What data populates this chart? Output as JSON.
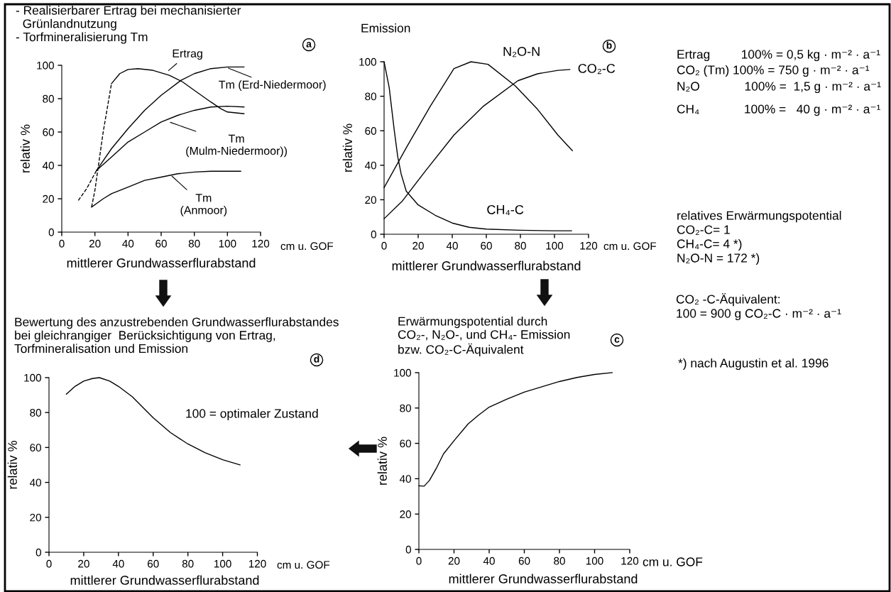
{
  "chart_data": [
    {
      "type": "line",
      "title": "- Realisierbarer Ertrag bei mechanisierter\n  Grünlandnutzung\n- Torfmineralisierung Tm",
      "xlabel": "mittlerer Grundwasserflurabstand",
      "ylabel": "relativ %",
      "xlim": [
        0,
        120
      ],
      "xticks": [
        0,
        20,
        40,
        60,
        80,
        100,
        120
      ],
      "ylim": [
        0,
        100
      ],
      "yticks": [
        0,
        20,
        40,
        60,
        80,
        100
      ],
      "series": [
        {
          "color": "#000000",
          "line_style": "dashed",
          "x": [
            18,
            20,
            25,
            30
          ],
          "values": [
            15,
            25,
            60,
            89
          ]
        },
        {
          "color": "#000000",
          "line_style": "solid",
          "x": [
            30,
            35,
            40,
            46,
            55,
            65,
            73,
            80,
            90,
            96,
            100,
            110
          ],
          "values": [
            89,
            95,
            97.5,
            98,
            97,
            94,
            90,
            85,
            78,
            74,
            72,
            71
          ]
        },
        {
          "color": "#000000",
          "line_style": "dashed",
          "x": [
            10,
            15,
            21
          ],
          "values": [
            19,
            26,
            37
          ]
        },
        {
          "color": "#000000",
          "line_style": "solid",
          "x": [
            21,
            30,
            40,
            50,
            60,
            72,
            80,
            90,
            100,
            110
          ],
          "values": [
            37,
            50,
            62,
            73,
            82,
            91,
            95,
            98,
            99,
            99
          ]
        },
        {
          "color": "#000000",
          "line_style": "solid",
          "x": [
            21,
            30,
            40,
            50,
            60,
            70,
            80,
            90,
            100,
            110
          ],
          "values": [
            37,
            45,
            54,
            60,
            66,
            70,
            73,
            75,
            75.5,
            75
          ]
        },
        {
          "color": "#000000",
          "line_style": "solid",
          "x": [
            18,
            25,
            30,
            40,
            50,
            60,
            70,
            80,
            90,
            100,
            108
          ],
          "values": [
            15,
            20,
            23,
            27,
            31,
            33,
            35,
            36,
            36.5,
            36.5,
            36.5
          ]
        }
      ],
      "annotations": [
        "a",
        "cm u. GOF",
        {
          "text": "Ertrag",
          "x": 64,
          "y": 96.5
        },
        {
          "text": "Tm (Erd-Niedermoor)",
          "x": 100,
          "y": 98.5
        },
        {
          "text": "Tm\n(Mulm-Niedermoor))",
          "x": 65,
          "y": 66
        },
        {
          "text": "Tm\n(Anmoor)",
          "x": 66,
          "y": 34
        }
      ]
    },
    {
      "type": "line",
      "title": "Emission",
      "xlabel": "mittlerer Grundwasserflurabstand",
      "ylabel": "relativ %",
      "xlim": [
        0,
        120
      ],
      "xticks": [
        0,
        20,
        40,
        60,
        80,
        100,
        120
      ],
      "ylim": [
        0,
        100
      ],
      "yticks": [
        0,
        20,
        40,
        60,
        80,
        100
      ],
      "series": [
        {
          "color": "#000000",
          "x": [
            0,
            3,
            6,
            8,
            10,
            13,
            20,
            30,
            40,
            50,
            60,
            80,
            100,
            110
          ],
          "values": [
            100,
            85,
            60,
            45,
            35,
            25,
            17,
            11,
            6.5,
            4,
            3,
            2.3,
            2,
            2
          ]
        },
        {
          "color": "#000000",
          "x": [
            0,
            13.5,
            27,
            41,
            51,
            61,
            77,
            90,
            102,
            110.5
          ],
          "values": [
            27,
            51,
            74,
            96,
            100,
            98.5,
            86,
            72.5,
            57.5,
            48.5
          ]
        },
        {
          "color": "#000000",
          "x": [
            0,
            10.5,
            24.5,
            41,
            58,
            78.5,
            90,
            102,
            109
          ],
          "values": [
            9,
            19,
            37,
            57.5,
            74,
            89,
            93,
            95,
            95.5
          ]
        }
      ],
      "annotations": [
        "b",
        "cm u. GOF",
        "Ertrag         100% = 0,5 kg · m⁻² · a⁻¹",
        "CO₂ (Tm) 100% = 750 g · m⁻² · a⁻¹",
        "N₂O             100% =  1,5 g · m⁻² · a⁻¹",
        "CH₄             100% =   40 g · m⁻² · a⁻¹",
        "relatives Erwärmungspotential\nCO₂-C= 1\nCH₄-C= 4 *)\nN₂O-N = 172 *)",
        {
          "text": "N₂O-N",
          "x": 61,
          "y": 98.5
        },
        {
          "text": "CO₂-C",
          "x": 109,
          "y": 95.5
        },
        {
          "text": "CH₄-C",
          "x": 85,
          "y": 2.2
        }
      ]
    },
    {
      "type": "line",
      "title": "Bewertung des anzustrebenden Grundwasserflurabstandes\nbei gleichrangiger  Berücksichtigung von Ertrag,\nTorfmineralisation und Emission",
      "xlabel": "mittlerer Grundwasserflurabstand",
      "ylabel": "relativ %",
      "xlim": [
        0,
        120
      ],
      "xticks": [
        0,
        20,
        40,
        60,
        80,
        100,
        120
      ],
      "ylim": [
        0,
        100
      ],
      "yticks": [
        0,
        20,
        40,
        60,
        80,
        100
      ],
      "series": [
        {
          "color": "#000000",
          "x": [
            10,
            15,
            20,
            25,
            29,
            35,
            40,
            48,
            55,
            60,
            70,
            80,
            90,
            100,
            110
          ],
          "values": [
            90.5,
            95,
            98,
            99.5,
            100,
            98,
            95,
            89,
            82,
            77,
            68.5,
            62,
            57,
            53,
            50
          ]
        }
      ],
      "annotations": [
        "d",
        "cm u. GOF",
        "100 = optimaler Zustand"
      ]
    },
    {
      "type": "line",
      "title": "Erwärmungspotential durch\nCO₂-, N₂O-, und CH₄- Emission\nbzw. CO₂-C-Äquivalent",
      "xlabel": "mittlerer Grundwasserflurabstand",
      "ylabel": "relativ %",
      "xlim": [
        0,
        120
      ],
      "xticks": [
        0,
        20,
        40,
        60,
        80,
        100,
        120
      ],
      "ylim": [
        0,
        100
      ],
      "yticks": [
        0,
        20,
        40,
        60,
        80,
        100
      ],
      "series": [
        {
          "color": "#000000",
          "x": [
            0,
            3,
            6,
            10,
            14,
            20,
            28,
            34,
            40,
            50,
            60,
            70,
            80,
            90,
            100,
            110
          ],
          "values": [
            36,
            35.8,
            39,
            46,
            54,
            61.5,
            71,
            76,
            80.5,
            85,
            89,
            92,
            95,
            97.3,
            99,
            100
          ]
        }
      ],
      "annotations": [
        "c",
        "cm u. GOF",
        "CO₂ -C-Äquivalent:\n100 = 900 g CO₂-C · m⁻² · a⁻¹",
        "*) nach Augustin et al. 1996"
      ]
    }
  ]
}
